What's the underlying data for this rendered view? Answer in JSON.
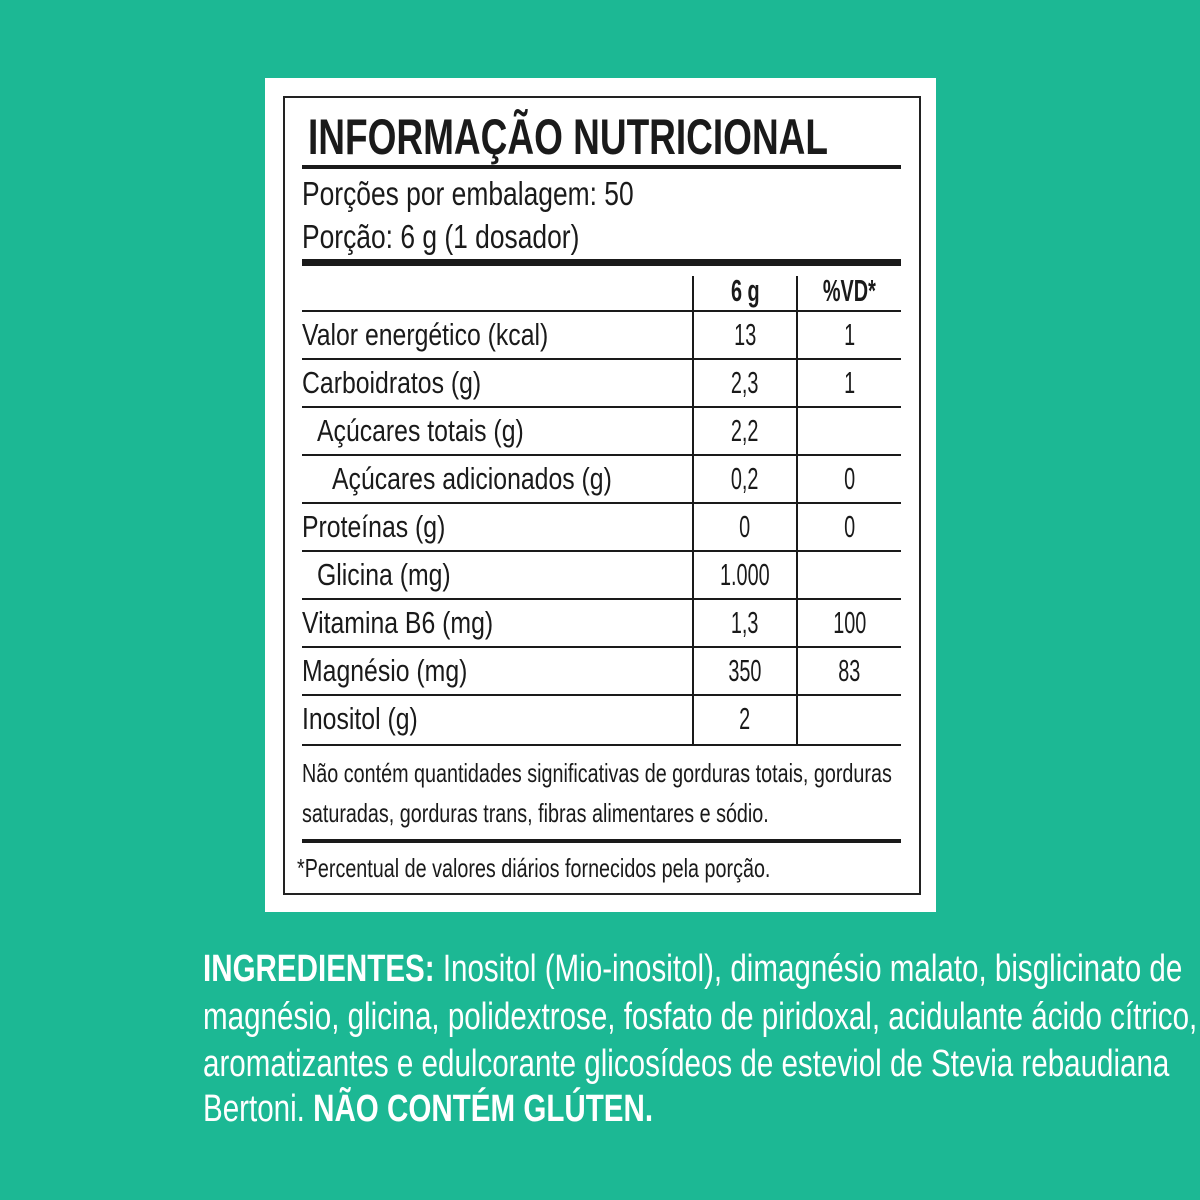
{
  "colors": {
    "background": "#1cb894",
    "panel": "#ffffff",
    "text": "#1a1a1a"
  },
  "label": {
    "title": "INFORMAÇÃO NUTRICIONAL",
    "servings_per_package": "Porções por embalagem: 50",
    "serving_size": "Porção: 6 g (1 dosador)",
    "columns": {
      "amount": "6 g",
      "dv": "%VD*"
    },
    "rows": [
      {
        "name": "Valor energético (kcal)",
        "amount": "13",
        "dv": "1",
        "indent": 0
      },
      {
        "name": "Carboidratos (g)",
        "amount": "2,3",
        "dv": "1",
        "indent": 0
      },
      {
        "name": "Açúcares totais (g)",
        "amount": "2,2",
        "dv": "",
        "indent": 1
      },
      {
        "name": "Açúcares adicionados (g)",
        "amount": "0,2",
        "dv": "0",
        "indent": 2
      },
      {
        "name": "Proteínas (g)",
        "amount": "0",
        "dv": "0",
        "indent": 0
      },
      {
        "name": "Glicina (mg)",
        "amount": "1.000",
        "dv": "",
        "indent": 1
      },
      {
        "name": "Vitamina B6 (mg)",
        "amount": "1,3",
        "dv": "100",
        "indent": 0
      },
      {
        "name": "Magnésio (mg)",
        "amount": "350",
        "dv": "83",
        "indent": 0
      },
      {
        "name": "Inositol (g)",
        "amount": "2",
        "dv": "",
        "indent": 0
      }
    ],
    "note_line1": "Não contém quantidades significativas de gorduras totais, gorduras",
    "note_line2": "saturadas, gorduras trans, fibras alimentares e sódio.",
    "footnote": "*Percentual de valores diários fornecidos pela porção."
  },
  "ingredients": {
    "heading": "INGREDIENTES:",
    "line1": "Inositol (Mio-inositol), dimagnésio malato, bisglicinato de",
    "line2": "magnésio, glicina, polidextrose, fosfato de piridoxal, acidulante ácido cítrico,",
    "line3": "aromatizantes e edulcorante glicosídeos de esteviol de Stevia rebaudiana",
    "line4": "Bertoni.",
    "gluten": "NÃO CONTÉM GLÚTEN."
  }
}
